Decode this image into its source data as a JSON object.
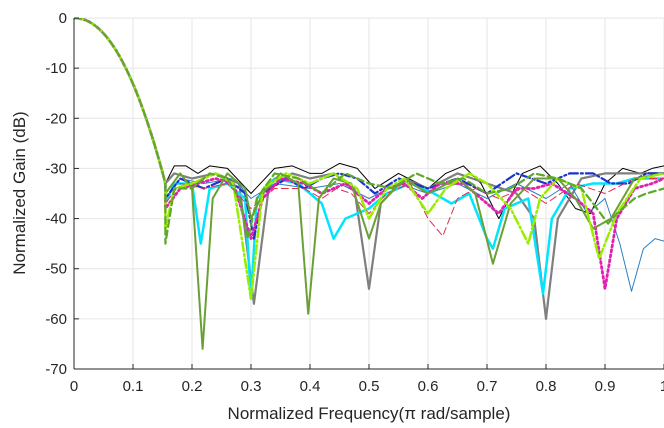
{
  "chart_data": {
    "type": "line",
    "title": "",
    "xlabel": "Normalized Frequency(π rad/sample)",
    "ylabel": "Normalized Gain (dB)",
    "xlim": [
      0,
      1
    ],
    "ylim": [
      -70,
      0
    ],
    "grid": true,
    "legend": "none",
    "x_ticks": [
      "0",
      "0.1",
      "0.2",
      "0.3",
      "0.4",
      "0.5",
      "0.6",
      "0.7",
      "0.8",
      "0.9",
      "1"
    ],
    "y_ticks": [
      "0",
      "-10",
      "-20",
      "-30",
      "-40",
      "-50",
      "-60",
      "-70"
    ],
    "series": [
      {
        "color": "#000000",
        "style": "solid",
        "width": 1,
        "points": [
          [
            0.155,
            -33
          ],
          [
            0.17,
            -29.5
          ],
          [
            0.19,
            -29.5
          ],
          [
            0.21,
            -31
          ],
          [
            0.23,
            -29.5
          ],
          [
            0.26,
            -30
          ],
          [
            0.3,
            -35
          ],
          [
            0.34,
            -30
          ],
          [
            0.37,
            -29.5
          ],
          [
            0.4,
            -31
          ],
          [
            0.42,
            -31
          ],
          [
            0.45,
            -29
          ],
          [
            0.48,
            -30
          ],
          [
            0.51,
            -34
          ],
          [
            0.55,
            -31
          ],
          [
            0.6,
            -34
          ],
          [
            0.63,
            -31
          ],
          [
            0.66,
            -29.5
          ],
          [
            0.69,
            -33
          ],
          [
            0.72,
            -40
          ],
          [
            0.76,
            -31
          ],
          [
            0.79,
            -29.5
          ],
          [
            0.82,
            -33
          ],
          [
            0.85,
            -38
          ],
          [
            0.875,
            -39
          ],
          [
            0.9,
            -33
          ],
          [
            0.93,
            -30
          ],
          [
            0.96,
            -31
          ],
          [
            0.98,
            -30
          ],
          [
            1,
            -29.5
          ]
        ]
      },
      {
        "color": "#7f7f7f",
        "style": "solid",
        "width": 2.2,
        "points": [
          [
            0.155,
            -33
          ],
          [
            0.17,
            -31
          ],
          [
            0.2,
            -32
          ],
          [
            0.24,
            -31
          ],
          [
            0.28,
            -33
          ],
          [
            0.305,
            -57
          ],
          [
            0.33,
            -34
          ],
          [
            0.37,
            -31
          ],
          [
            0.4,
            -32
          ],
          [
            0.44,
            -31
          ],
          [
            0.475,
            -34
          ],
          [
            0.5,
            -54
          ],
          [
            0.52,
            -37
          ],
          [
            0.56,
            -32
          ],
          [
            0.6,
            -34
          ],
          [
            0.65,
            -31
          ],
          [
            0.7,
            -33
          ],
          [
            0.75,
            -35
          ],
          [
            0.78,
            -40
          ],
          [
            0.8,
            -60
          ],
          [
            0.82,
            -40
          ],
          [
            0.86,
            -32
          ],
          [
            0.9,
            -31
          ],
          [
            0.95,
            -31
          ],
          [
            1,
            -31
          ]
        ]
      },
      {
        "color": "#00e5ff",
        "style": "solid",
        "width": 2.5,
        "points": [
          [
            0.155,
            -37
          ],
          [
            0.17,
            -33
          ],
          [
            0.2,
            -33
          ],
          [
            0.215,
            -45
          ],
          [
            0.23,
            -34
          ],
          [
            0.26,
            -33
          ],
          [
            0.29,
            -36
          ],
          [
            0.3,
            -56
          ],
          [
            0.31,
            -36
          ],
          [
            0.34,
            -32
          ],
          [
            0.38,
            -33
          ],
          [
            0.41,
            -36
          ],
          [
            0.42,
            -37
          ],
          [
            0.44,
            -44
          ],
          [
            0.46,
            -40
          ],
          [
            0.5,
            -38
          ],
          [
            0.53,
            -35
          ],
          [
            0.57,
            -33
          ],
          [
            0.61,
            -35
          ],
          [
            0.64,
            -37
          ],
          [
            0.67,
            -35
          ],
          [
            0.7,
            -44
          ],
          [
            0.71,
            -46
          ],
          [
            0.73,
            -38
          ],
          [
            0.77,
            -36
          ],
          [
            0.795,
            -55
          ],
          [
            0.81,
            -40
          ],
          [
            0.84,
            -34
          ],
          [
            0.88,
            -33
          ],
          [
            0.92,
            -33
          ],
          [
            0.95,
            -32
          ],
          [
            1,
            -32
          ]
        ]
      },
      {
        "color": "#2f7fbf",
        "style": "solid",
        "width": 1,
        "points": [
          [
            0.155,
            -36
          ],
          [
            0.18,
            -32
          ],
          [
            0.22,
            -33
          ],
          [
            0.27,
            -32
          ],
          [
            0.3,
            -36
          ],
          [
            0.34,
            -33
          ],
          [
            0.4,
            -34
          ],
          [
            0.45,
            -33
          ],
          [
            0.5,
            -36
          ],
          [
            0.55,
            -33
          ],
          [
            0.6,
            -35
          ],
          [
            0.65,
            -33
          ],
          [
            0.7,
            -36
          ],
          [
            0.75,
            -33
          ],
          [
            0.8,
            -36
          ],
          [
            0.84,
            -33
          ],
          [
            0.87,
            -39
          ],
          [
            0.9,
            -36
          ],
          [
            0.925,
            -45
          ],
          [
            0.945,
            -54.5
          ],
          [
            0.965,
            -46
          ],
          [
            0.985,
            -44
          ],
          [
            1,
            -44.5
          ]
        ]
      },
      {
        "color": "#1a33cc",
        "style": "dashdot",
        "width": 2.2,
        "points": [
          [
            0.155,
            -36
          ],
          [
            0.18,
            -32
          ],
          [
            0.22,
            -34
          ],
          [
            0.26,
            -32
          ],
          [
            0.29,
            -35
          ],
          [
            0.305,
            -44
          ],
          [
            0.32,
            -35
          ],
          [
            0.36,
            -32
          ],
          [
            0.39,
            -34
          ],
          [
            0.42,
            -32
          ],
          [
            0.45,
            -31
          ],
          [
            0.48,
            -32
          ],
          [
            0.51,
            -35
          ],
          [
            0.55,
            -32
          ],
          [
            0.6,
            -34
          ],
          [
            0.65,
            -32
          ],
          [
            0.7,
            -35
          ],
          [
            0.75,
            -31
          ],
          [
            0.8,
            -33
          ],
          [
            0.84,
            -31
          ],
          [
            0.88,
            -31
          ],
          [
            0.91,
            -33
          ],
          [
            0.94,
            -33
          ],
          [
            0.97,
            -31
          ],
          [
            1,
            -31
          ]
        ]
      },
      {
        "color": "#e0304e",
        "style": "dash",
        "width": 1,
        "points": [
          [
            0.155,
            -37
          ],
          [
            0.18,
            -33
          ],
          [
            0.22,
            -34
          ],
          [
            0.26,
            -33
          ],
          [
            0.3,
            -38
          ],
          [
            0.34,
            -34
          ],
          [
            0.39,
            -34
          ],
          [
            0.42,
            -36
          ],
          [
            0.445,
            -34
          ],
          [
            0.47,
            -35
          ],
          [
            0.5,
            -39
          ],
          [
            0.53,
            -35
          ],
          [
            0.57,
            -33
          ],
          [
            0.6,
            -40
          ],
          [
            0.625,
            -43.5
          ],
          [
            0.65,
            -36
          ],
          [
            0.68,
            -34
          ],
          [
            0.72,
            -36
          ],
          [
            0.76,
            -34
          ],
          [
            0.8,
            -37
          ],
          [
            0.85,
            -33
          ],
          [
            0.9,
            -35
          ],
          [
            0.95,
            -32
          ],
          [
            1,
            -32
          ]
        ]
      },
      {
        "color": "#e020b0",
        "style": "dot",
        "width": 2.8,
        "points": [
          [
            0.155,
            -38
          ],
          [
            0.18,
            -34
          ],
          [
            0.21,
            -33
          ],
          [
            0.24,
            -32
          ],
          [
            0.27,
            -33
          ],
          [
            0.3,
            -44
          ],
          [
            0.32,
            -36
          ],
          [
            0.35,
            -32
          ],
          [
            0.39,
            -33
          ],
          [
            0.42,
            -35
          ],
          [
            0.46,
            -33
          ],
          [
            0.5,
            -37
          ],
          [
            0.53,
            -34
          ],
          [
            0.56,
            -33
          ],
          [
            0.59,
            -36
          ],
          [
            0.62,
            -33
          ],
          [
            0.66,
            -33
          ],
          [
            0.7,
            -37
          ],
          [
            0.72,
            -39
          ],
          [
            0.75,
            -34
          ],
          [
            0.78,
            -34
          ],
          [
            0.81,
            -33
          ],
          [
            0.85,
            -36
          ],
          [
            0.88,
            -39
          ],
          [
            0.9,
            -54
          ],
          [
            0.92,
            -40
          ],
          [
            0.95,
            -34
          ],
          [
            0.98,
            -33
          ],
          [
            1,
            -32
          ]
        ]
      },
      {
        "color": "#6aa035",
        "style": "solid",
        "width": 2,
        "points": [
          [
            0.155,
            -35
          ],
          [
            0.18,
            -31
          ],
          [
            0.2,
            -34
          ],
          [
            0.218,
            -66
          ],
          [
            0.235,
            -36
          ],
          [
            0.26,
            -31
          ],
          [
            0.29,
            -34
          ],
          [
            0.3,
            -40
          ],
          [
            0.32,
            -35
          ],
          [
            0.35,
            -31
          ],
          [
            0.38,
            -33
          ],
          [
            0.397,
            -59
          ],
          [
            0.415,
            -36
          ],
          [
            0.44,
            -32
          ],
          [
            0.47,
            -33
          ],
          [
            0.5,
            -44
          ],
          [
            0.52,
            -37
          ],
          [
            0.56,
            -32
          ],
          [
            0.6,
            -35
          ],
          [
            0.65,
            -32
          ],
          [
            0.68,
            -35
          ],
          [
            0.71,
            -49
          ],
          [
            0.74,
            -37
          ],
          [
            0.78,
            -32
          ],
          [
            0.82,
            -32
          ],
          [
            0.85,
            -36
          ],
          [
            0.88,
            -42
          ],
          [
            0.91,
            -40
          ],
          [
            0.95,
            -32
          ],
          [
            1,
            -31
          ]
        ]
      },
      {
        "color": "#99ee00",
        "style": "dashdot",
        "width": 2.5,
        "points": [
          [
            0.155,
            -42
          ],
          [
            0.17,
            -34
          ],
          [
            0.2,
            -33
          ],
          [
            0.24,
            -31
          ],
          [
            0.27,
            -33
          ],
          [
            0.3,
            -56
          ],
          [
            0.32,
            -34
          ],
          [
            0.36,
            -31
          ],
          [
            0.4,
            -33
          ],
          [
            0.44,
            -31
          ],
          [
            0.48,
            -34
          ],
          [
            0.5,
            -40
          ],
          [
            0.53,
            -34
          ],
          [
            0.56,
            -32
          ],
          [
            0.6,
            -39
          ],
          [
            0.63,
            -34
          ],
          [
            0.67,
            -31
          ],
          [
            0.7,
            -33
          ],
          [
            0.74,
            -38
          ],
          [
            0.77,
            -45
          ],
          [
            0.79,
            -36
          ],
          [
            0.82,
            -32
          ],
          [
            0.86,
            -34
          ],
          [
            0.89,
            -48
          ],
          [
            0.92,
            -39
          ],
          [
            0.96,
            -32
          ],
          [
            1,
            -31
          ]
        ]
      },
      {
        "color": "#5fa82a",
        "style": "dash",
        "width": 2.2,
        "points": [
          [
            0.155,
            -45
          ],
          [
            0.17,
            -34
          ],
          [
            0.2,
            -34
          ],
          [
            0.23,
            -31
          ],
          [
            0.26,
            -32
          ],
          [
            0.28,
            -36
          ],
          [
            0.295,
            -44
          ],
          [
            0.31,
            -36
          ],
          [
            0.34,
            -31
          ],
          [
            0.38,
            -32
          ],
          [
            0.42,
            -35
          ],
          [
            0.46,
            -31
          ],
          [
            0.5,
            -33
          ],
          [
            0.54,
            -34
          ],
          [
            0.58,
            -31
          ],
          [
            0.62,
            -33
          ],
          [
            0.66,
            -32
          ],
          [
            0.7,
            -35
          ],
          [
            0.74,
            -34
          ],
          [
            0.78,
            -31
          ],
          [
            0.82,
            -32
          ],
          [
            0.86,
            -34
          ],
          [
            0.88,
            -37
          ],
          [
            0.905,
            -41
          ],
          [
            0.92,
            -39
          ],
          [
            0.95,
            -36
          ],
          [
            0.97,
            -35
          ],
          [
            1,
            -34
          ]
        ]
      }
    ]
  }
}
